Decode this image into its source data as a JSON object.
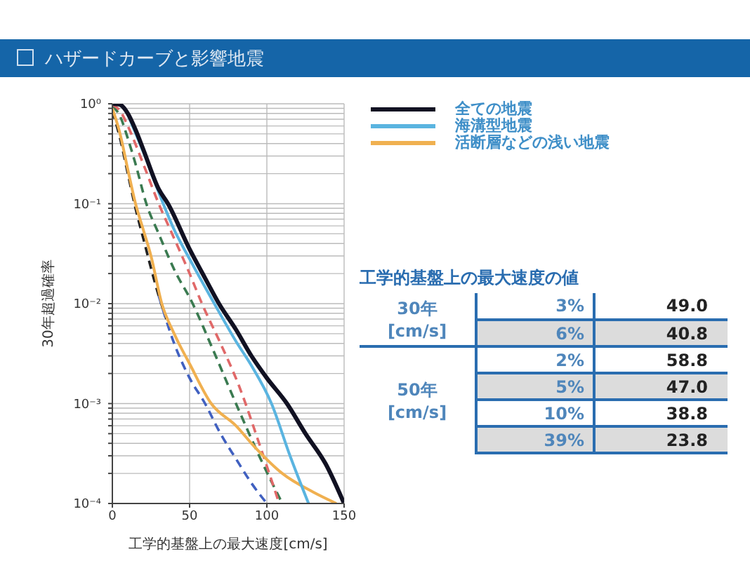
{
  "chart_data": [
    {
      "type": "line",
      "title": "ハザードカーブと影響地震",
      "xlabel": "工学的基盤上の最大速度[cm/s]",
      "ylabel": "30年超過確率",
      "log": "y",
      "grid": true,
      "legend": "top right",
      "marker": "none",
      "xlim": [
        0,
        150
      ],
      "xticks": [
        0,
        50,
        100,
        150
      ],
      "ylim": [
        0.0001,
        1
      ],
      "yticks": [
        {
          "value": 0.0001,
          "label": "10⁻⁴"
        },
        {
          "value": 0.0002,
          "label": null
        },
        {
          "value": 0.0003,
          "label": null
        },
        {
          "value": 0.0004,
          "label": null
        },
        {
          "value": 0.0005,
          "label": null
        },
        {
          "value": 0.0006,
          "label": null
        },
        {
          "value": 0.0007,
          "label": null
        },
        {
          "value": 0.0008,
          "label": null
        },
        {
          "value": 0.0009,
          "label": null
        },
        {
          "value": 0.001,
          "label": "10⁻³"
        },
        {
          "value": 0.002,
          "label": null
        },
        {
          "value": 0.003,
          "label": null
        },
        {
          "value": 0.004,
          "label": null
        },
        {
          "value": 0.005,
          "label": null
        },
        {
          "value": 0.006,
          "label": null
        },
        {
          "value": 0.007,
          "label": null
        },
        {
          "value": 0.008,
          "label": null
        },
        {
          "value": 0.009,
          "label": null
        },
        {
          "value": 0.01,
          "label": "10⁻²"
        },
        {
          "value": 0.02,
          "label": null
        },
        {
          "value": 0.03,
          "label": null
        },
        {
          "value": 0.04,
          "label": null
        },
        {
          "value": 0.05,
          "label": null
        },
        {
          "value": 0.06,
          "label": null
        },
        {
          "value": 0.07,
          "label": null
        },
        {
          "value": 0.08,
          "label": null
        },
        {
          "value": 0.09,
          "label": null
        },
        {
          "value": 0.1,
          "label": "10⁻¹"
        },
        {
          "value": 0.2,
          "label": null
        },
        {
          "value": 0.3,
          "label": null
        },
        {
          "value": 0.4,
          "label": null
        },
        {
          "value": 0.5,
          "label": null
        },
        {
          "value": 0.6,
          "label": null
        },
        {
          "value": 0.7,
          "label": null
        },
        {
          "value": 0.8,
          "label": null
        },
        {
          "value": 0.9,
          "label": null
        },
        {
          "value": 1,
          "label": "10⁰"
        }
      ],
      "series": [
        {
          "color": "#3a7a50",
          "line_style": "dashed",
          "x": [
            0,
            5,
            10,
            15,
            22,
            30,
            40,
            52,
            65,
            80,
            95,
            110
          ],
          "values": [
            0.95,
            0.75,
            0.45,
            0.25,
            0.1,
            0.05,
            0.022,
            0.01,
            0.0035,
            0.001,
            0.0003,
            0.0001
          ]
        },
        {
          "color": "#e06868",
          "line_style": "dashed",
          "x": [
            0,
            5,
            10,
            20,
            30,
            40,
            50,
            58,
            70,
            82,
            95,
            108
          ],
          "values": [
            0.98,
            0.85,
            0.6,
            0.25,
            0.1,
            0.045,
            0.02,
            0.01,
            0.004,
            0.0015,
            0.0004,
            0.0001
          ]
        },
        {
          "color": "#222222",
          "line_style": "dashed",
          "x": [
            0,
            5,
            10,
            15,
            20,
            30,
            35
          ],
          "values": [
            0.85,
            0.45,
            0.2,
            0.09,
            0.045,
            0.012,
            0.007
          ]
        },
        {
          "color": "#4060c0",
          "line_style": "dashed",
          "x": [
            30,
            40,
            50,
            60,
            70,
            80,
            90,
            100
          ],
          "values": [
            0.012,
            0.004,
            0.0018,
            0.001,
            0.0005,
            0.00028,
            0.00016,
            0.0001
          ]
        },
        {
          "name": "活断層などの浅い地震",
          "color": "#f0b050",
          "line_style": "solid",
          "x": [
            0,
            5,
            10,
            15,
            20,
            25,
            32,
            40,
            50,
            64,
            80,
            92,
            110,
            130,
            145
          ],
          "values": [
            0.9,
            0.5,
            0.22,
            0.1,
            0.055,
            0.03,
            0.01,
            0.005,
            0.0025,
            0.001,
            0.0006,
            0.00037,
            0.0002,
            0.00013,
            0.0001
          ]
        },
        {
          "name": "海溝型地震",
          "color": "#5ab4e0",
          "line_style": "solid",
          "x": [
            10,
            20,
            30,
            40,
            50,
            66,
            80,
            90,
            103,
            115,
            127
          ],
          "values": [
            0.78,
            0.33,
            0.13,
            0.055,
            0.028,
            0.01,
            0.0042,
            0.0024,
            0.001,
            0.0003,
            0.0001
          ]
        },
        {
          "name": "全ての地震",
          "color": "#111122",
          "line_style": "solid",
          "x": [
            0,
            5,
            10,
            15,
            20,
            30,
            36,
            50,
            60,
            69,
            80,
            90,
            100,
            113,
            125,
            138,
            150
          ],
          "values": [
            1,
            0.98,
            0.8,
            0.55,
            0.35,
            0.14,
            0.1,
            0.035,
            0.018,
            0.01,
            0.0055,
            0.003,
            0.0018,
            0.001,
            0.0005,
            0.00025,
            0.0001
          ]
        }
      ]
    },
    {
      "type": "other",
      "title": "工学的基盤上の最大速度の値",
      "categories": [
        "3%",
        "6%",
        "2%",
        "5%",
        "10%",
        "39%"
      ],
      "values": [
        49.0,
        40.8,
        58.8,
        47.0,
        38.8,
        23.8
      ],
      "value_labels": [
        "49.0",
        "40.8",
        "58.8",
        "47.0",
        "38.8",
        "23.8"
      ],
      "annotations": [
        {
          "text": "30年 [cm/s]",
          "y": "3%"
        },
        {
          "text": "50年 [cm/s]",
          "y": "2%"
        }
      ]
    }
  ]
}
